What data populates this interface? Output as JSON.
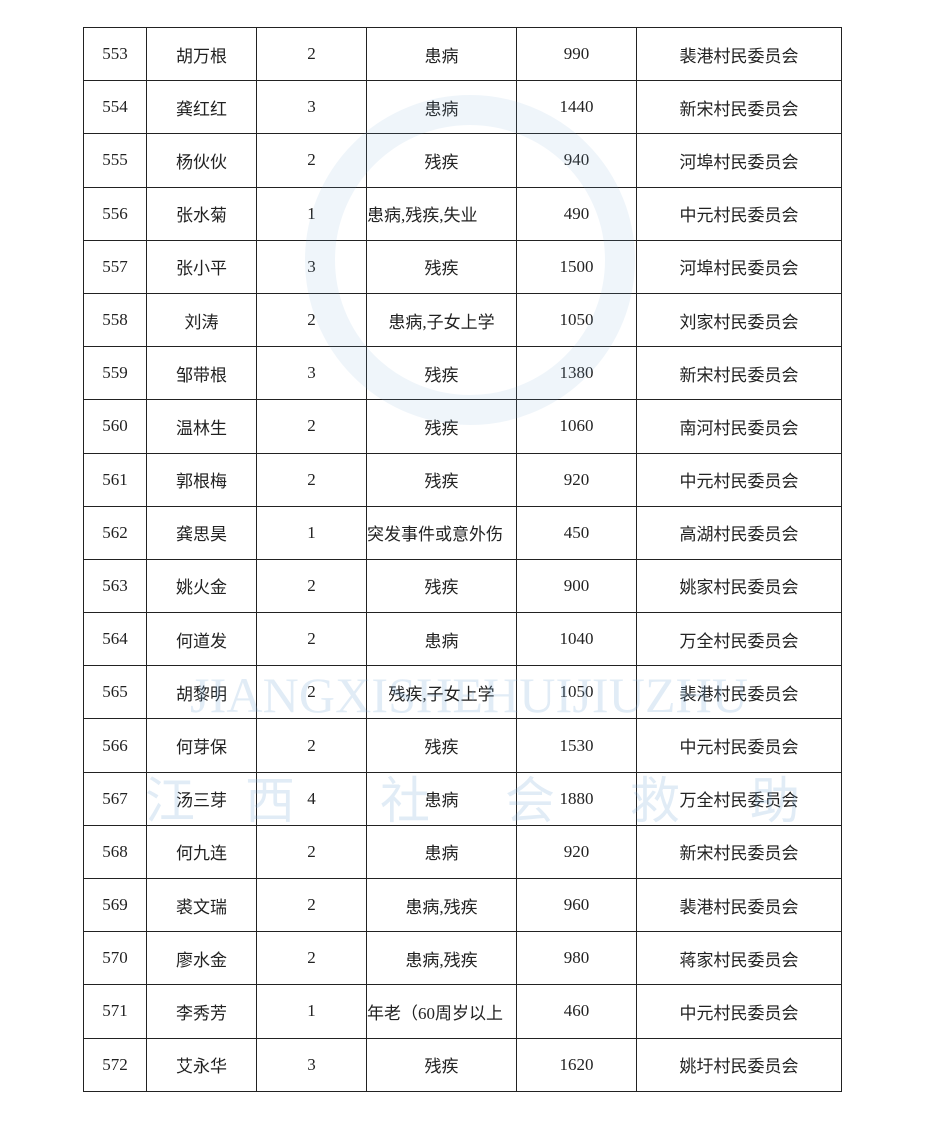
{
  "watermark": {
    "latin": "JIANGXISHEHUIJIUZHU",
    "chinese": [
      "江",
      "西",
      "社",
      "会",
      "救",
      "助"
    ]
  },
  "table": {
    "rows": [
      [
        553,
        "胡万根",
        2,
        "患病",
        990,
        "裴港村民委员会"
      ],
      [
        554,
        "龚红红",
        3,
        "患病",
        1440,
        "新宋村民委员会"
      ],
      [
        555,
        "杨伙伙",
        2,
        "残疾",
        940,
        "河埠村民委员会"
      ],
      [
        556,
        "张水菊",
        1,
        "患病,残疾,失业",
        490,
        "中元村民委员会"
      ],
      [
        557,
        "张小平",
        3,
        "残疾",
        1500,
        "河埠村民委员会"
      ],
      [
        558,
        "刘涛",
        2,
        "患病,子女上学",
        1050,
        "刘家村民委员会"
      ],
      [
        559,
        "邹带根",
        3,
        "残疾",
        1380,
        "新宋村民委员会"
      ],
      [
        560,
        "温林生",
        2,
        "残疾",
        1060,
        "南河村民委员会"
      ],
      [
        561,
        "郭根梅",
        2,
        "残疾",
        920,
        "中元村民委员会"
      ],
      [
        562,
        "龚思昊",
        1,
        "突发事件或意外伤",
        450,
        "高湖村民委员会"
      ],
      [
        563,
        "姚火金",
        2,
        "残疾",
        900,
        "姚家村民委员会"
      ],
      [
        564,
        "何道发",
        2,
        "患病",
        1040,
        "万全村民委员会"
      ],
      [
        565,
        "胡黎明",
        2,
        "残疾,子女上学",
        1050,
        "裴港村民委员会"
      ],
      [
        566,
        "何芽保",
        2,
        "残疾",
        1530,
        "中元村民委员会"
      ],
      [
        567,
        "汤三芽",
        4,
        "患病",
        1880,
        "万全村民委员会"
      ],
      [
        568,
        "何九连",
        2,
        "患病",
        920,
        "新宋村民委员会"
      ],
      [
        569,
        "裘文瑞",
        2,
        "患病,残疾",
        960,
        "裴港村民委员会"
      ],
      [
        570,
        "廖水金",
        2,
        "患病,残疾",
        980,
        "蒋家村民委员会"
      ],
      [
        571,
        "李秀芳",
        1,
        "年老（60周岁以上",
        460,
        "中元村民委员会"
      ],
      [
        572,
        "艾永华",
        3,
        "残疾",
        1620,
        "姚圩村民委员会"
      ]
    ]
  }
}
